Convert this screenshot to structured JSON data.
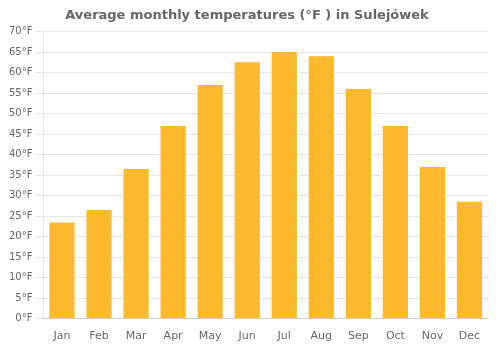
{
  "chart_data": {
    "type": "bar",
    "title": "Average monthly temperatures (°F ) in Sulejówek",
    "categories": [
      "Jan",
      "Feb",
      "Mar",
      "Apr",
      "May",
      "Jun",
      "Jul",
      "Aug",
      "Sep",
      "Oct",
      "Nov",
      "Dec"
    ],
    "values": [
      23.5,
      26.5,
      36.5,
      47,
      57,
      62.5,
      65,
      64,
      56,
      47,
      37,
      28.5
    ],
    "color": "#FDB92E",
    "ylim": [
      0,
      70
    ],
    "yticks": [
      {
        "value": 0,
        "label": "0°F"
      },
      {
        "value": 5,
        "label": "5°F"
      },
      {
        "value": 10,
        "label": "10°F"
      },
      {
        "value": 15,
        "label": "15°F"
      },
      {
        "value": 20,
        "label": "20°F"
      },
      {
        "value": 25,
        "label": "25°F"
      },
      {
        "value": 30,
        "label": "30°F"
      },
      {
        "value": 35,
        "label": "35°F"
      },
      {
        "value": 40,
        "label": "40°F"
      },
      {
        "value": 45,
        "label": "45°F"
      },
      {
        "value": 50,
        "label": "50°F"
      },
      {
        "value": 55,
        "label": "55°F"
      },
      {
        "value": 60,
        "label": "60°F"
      },
      {
        "value": 65,
        "label": "65°F"
      },
      {
        "value": 70,
        "label": "70°F"
      }
    ],
    "grid": true
  }
}
